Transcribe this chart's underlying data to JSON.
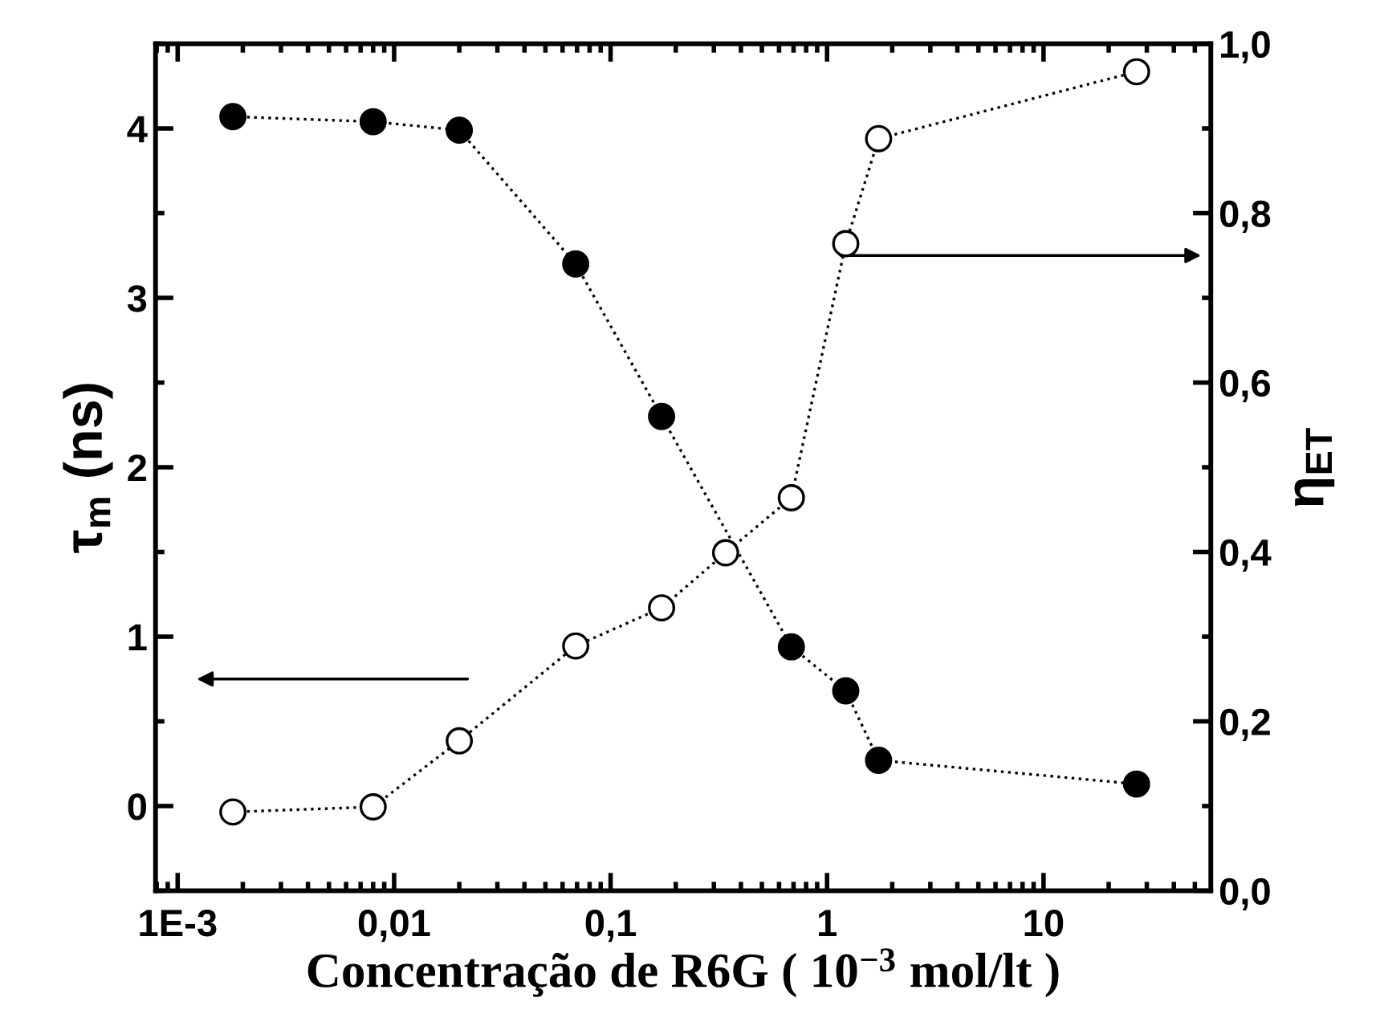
{
  "chart_data": {
    "type": "line",
    "xlabel": "Concentração de R6G ( 10$^{−3}$ mol/lt )",
    "ylabel": "τ$_{m}$ (ns)",
    "y2label": "η$_{ET}$",
    "log": "x",
    "grid": false,
    "legend": false,
    "marker": "circle",
    "line_style": "dotted",
    "xlim": [
      0.00079,
      59.3
    ],
    "xticks": [
      {
        "value": 0.001,
        "label": "1E-3"
      },
      {
        "value": 0.01,
        "label": "0,01"
      },
      {
        "value": 0.1,
        "label": "0,1"
      },
      1,
      10
    ],
    "ylim": [
      -0.5,
      4.5
    ],
    "yticks": [
      0,
      1,
      2,
      3,
      4
    ],
    "y2lim": [
      0,
      1
    ],
    "y2ticks": [
      {
        "value": 0,
        "label": "0,0"
      },
      {
        "value": 0.2,
        "label": "0,2"
      },
      {
        "value": 0.4,
        "label": "0,4"
      },
      {
        "value": 0.6,
        "label": "0,6"
      },
      {
        "value": 0.8,
        "label": "0,8"
      },
      {
        "value": 1,
        "label": "1,0"
      }
    ],
    "series": [
      {
        "color": "#000000",
        "x": [
          0.0018,
          0.008,
          0.02,
          0.069,
          0.172,
          0.684,
          1.22,
          1.73,
          26.9
        ],
        "values": [
          4.07,
          4.04,
          3.99,
          3.2,
          2.3,
          0.94,
          0.68,
          0.27,
          0.13
        ]
      },
      {
        "color": "#ffffff",
        "axis": "y2",
        "x": [
          0.0018,
          0.008,
          0.02,
          0.069,
          0.172,
          0.34,
          0.684,
          1.22,
          1.73,
          26.9
        ],
        "values": [
          0.093,
          0.099,
          0.177,
          0.289,
          0.334,
          0.399,
          0.464,
          0.764,
          0.888,
          0.967
        ]
      }
    ]
  }
}
